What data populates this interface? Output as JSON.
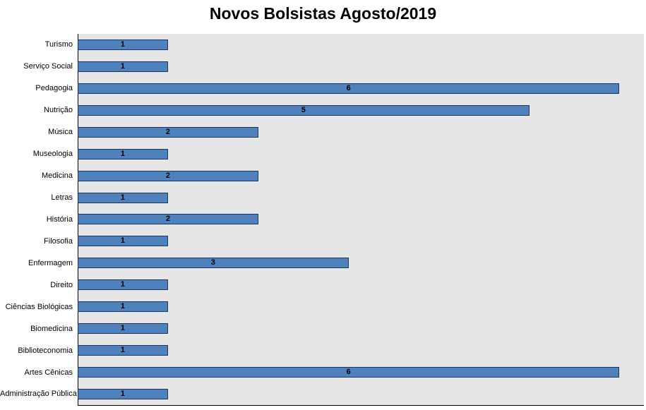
{
  "chart_data": {
    "type": "bar",
    "orientation": "horizontal",
    "title": "Novos Bolsistas Agosto/2019",
    "xlabel": "",
    "ylabel": "",
    "categories": [
      "Turismo",
      "Serviço Social",
      "Pedagogia",
      "Nutrição",
      "Música",
      "Museologia",
      "Medicina",
      "Letras",
      "História",
      "Filosofia",
      "Enfermagem",
      "Direito",
      "Ciências Biológicas",
      "Biomedicina",
      "Biblioteconomia",
      "Artes Cênicas",
      "Administração Pública"
    ],
    "values": [
      1,
      1,
      6,
      5,
      2,
      1,
      2,
      1,
      2,
      1,
      3,
      1,
      1,
      1,
      1,
      6,
      1
    ],
    "xlim": [
      0,
      6.27
    ],
    "grid": false,
    "legend": "none",
    "data_labels": "center",
    "colors": {
      "bar_fill": "#4f81bd",
      "bar_border": "#17375e",
      "plot_bg": "#e6e6e6",
      "label": "#000000"
    }
  }
}
